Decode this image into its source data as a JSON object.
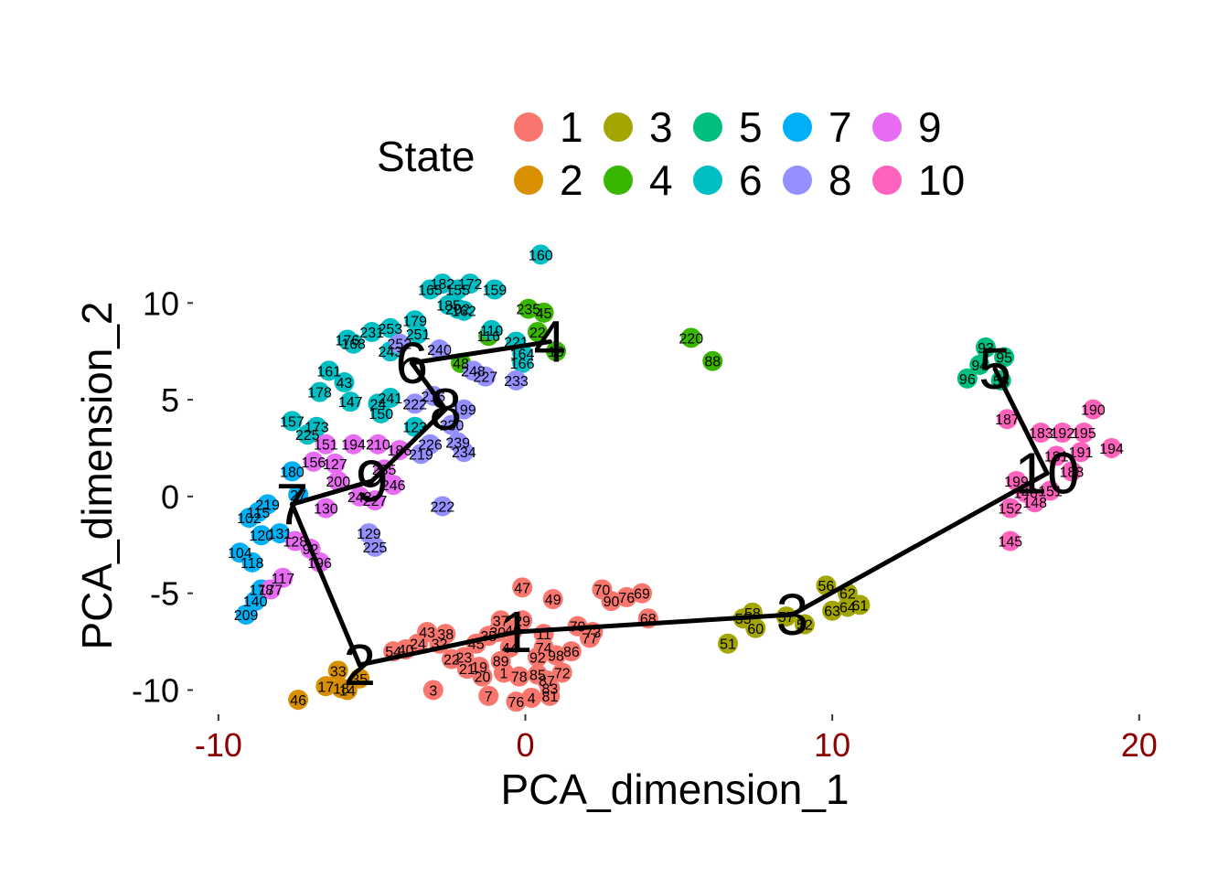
{
  "chart_data": {
    "type": "scatter",
    "title": "",
    "xlabel": "PCA_dimension_1",
    "ylabel": "PCA_dimension_2",
    "xlim": [
      -10.8,
      20.9
    ],
    "ylim": [
      -11.3,
      12.8
    ],
    "x_ticks": [
      -10,
      0,
      10,
      20
    ],
    "y_ticks": [
      -10,
      -5,
      0,
      5,
      10
    ],
    "x_tick_labels": [
      "-10",
      "0",
      "10",
      "20"
    ],
    "y_tick_labels": [
      "-10",
      "-5",
      "0",
      "5",
      "10"
    ],
    "grid": false,
    "legend": {
      "title": "State",
      "position": "top",
      "entries": [
        {
          "label": "1",
          "color": "#F8766D"
        },
        {
          "label": "2",
          "color": "#D89000"
        },
        {
          "label": "3",
          "color": "#A3A500"
        },
        {
          "label": "4",
          "color": "#39B600"
        },
        {
          "label": "5",
          "color": "#00BF7D"
        },
        {
          "label": "6",
          "color": "#00BFC4"
        },
        {
          "label": "7",
          "color": "#00B0F6"
        },
        {
          "label": "8",
          "color": "#9590FF"
        },
        {
          "label": "9",
          "color": "#E76BF3"
        },
        {
          "label": "10",
          "color": "#FF62BC"
        }
      ]
    },
    "state_colors": {
      "1": "#F8766D",
      "2": "#D89000",
      "3": "#A3A500",
      "4": "#39B600",
      "5": "#00BF7D",
      "6": "#00BFC4",
      "7": "#00B0F6",
      "8": "#9590FF",
      "9": "#E76BF3",
      "10": "#FF62BC"
    },
    "trajectory": {
      "edges": [
        [
          "7",
          "2"
        ],
        [
          "2",
          "1"
        ],
        [
          "1",
          "3"
        ],
        [
          "3",
          "10"
        ],
        [
          "10",
          "5"
        ],
        [
          "7",
          "9"
        ],
        [
          "9",
          "8"
        ],
        [
          "8",
          "6"
        ],
        [
          "6",
          "4"
        ]
      ],
      "centers": [
        {
          "state": "1",
          "label": "1",
          "x": -0.3,
          "y": -7.0
        },
        {
          "state": "2",
          "label": "2",
          "x": -5.4,
          "y": -8.7
        },
        {
          "state": "3",
          "label": "3",
          "x": 8.7,
          "y": -6.1
        },
        {
          "state": "4",
          "label": "4",
          "x": 0.8,
          "y": 8.0
        },
        {
          "state": "5",
          "label": "5",
          "x": 15.3,
          "y": 6.6
        },
        {
          "state": "6",
          "label": "6",
          "x": -3.7,
          "y": 6.9
        },
        {
          "state": "7",
          "label": "7",
          "x": -7.6,
          "y": -0.4
        },
        {
          "state": "8",
          "label": "8",
          "x": -2.6,
          "y": 4.5
        },
        {
          "state": "9",
          "label": "9",
          "x": -5.0,
          "y": 0.8
        },
        {
          "state": "10",
          "label": "10",
          "x": 17.0,
          "y": 1.2
        }
      ]
    },
    "points": [
      {
        "x": -0.1,
        "y": -4.7,
        "state": "1",
        "label": "47"
      },
      {
        "x": 0.9,
        "y": -5.3,
        "state": "1",
        "label": "49"
      },
      {
        "x": 2.5,
        "y": -4.8,
        "state": "1",
        "label": "70"
      },
      {
        "x": 2.8,
        "y": -5.4,
        "state": "1",
        "label": "90"
      },
      {
        "x": 3.3,
        "y": -5.2,
        "state": "1",
        "label": "76"
      },
      {
        "x": 3.8,
        "y": -5.0,
        "state": "1",
        "label": "69"
      },
      {
        "x": 4.0,
        "y": -6.3,
        "state": "1",
        "label": "68"
      },
      {
        "x": 1.7,
        "y": -6.7,
        "state": "1",
        "label": "79"
      },
      {
        "x": 2.1,
        "y": -7.3,
        "state": "1",
        "label": "77"
      },
      {
        "x": 2.2,
        "y": -7.0,
        "state": "1",
        "label": "73"
      },
      {
        "x": -3.2,
        "y": -7.0,
        "state": "1",
        "label": "43"
      },
      {
        "x": -3.5,
        "y": -7.6,
        "state": "1",
        "label": "24"
      },
      {
        "x": -2.6,
        "y": -7.1,
        "state": "1",
        "label": "38"
      },
      {
        "x": -2.8,
        "y": -7.6,
        "state": "1",
        "label": "32"
      },
      {
        "x": -0.8,
        "y": -6.4,
        "state": "1",
        "label": "37"
      },
      {
        "x": -0.1,
        "y": -6.4,
        "state": "1",
        "label": "29"
      },
      {
        "x": -0.9,
        "y": -7.0,
        "state": "1",
        "label": "30"
      },
      {
        "x": -1.2,
        "y": -7.2,
        "state": "1",
        "label": "35"
      },
      {
        "x": -0.4,
        "y": -6.9,
        "state": "1",
        "label": "40"
      },
      {
        "x": 0.6,
        "y": -7.1,
        "state": "1",
        "label": "11"
      },
      {
        "x": -1.6,
        "y": -7.6,
        "state": "1",
        "label": "45"
      },
      {
        "x": -0.5,
        "y": -7.8,
        "state": "1",
        "label": "44"
      },
      {
        "x": 0.6,
        "y": -7.8,
        "state": "1",
        "label": "74"
      },
      {
        "x": 1.5,
        "y": -8.0,
        "state": "1",
        "label": "86"
      },
      {
        "x": -2.4,
        "y": -8.4,
        "state": "1",
        "label": "22"
      },
      {
        "x": -2.0,
        "y": -8.3,
        "state": "1",
        "label": "23"
      },
      {
        "x": -0.8,
        "y": -8.5,
        "state": "1",
        "label": "89"
      },
      {
        "x": 0.4,
        "y": -8.3,
        "state": "1",
        "label": "92"
      },
      {
        "x": 1.0,
        "y": -8.2,
        "state": "1",
        "label": "98"
      },
      {
        "x": -1.9,
        "y": -8.9,
        "state": "1",
        "label": "21"
      },
      {
        "x": -1.5,
        "y": -8.8,
        "state": "1",
        "label": "19"
      },
      {
        "x": -0.7,
        "y": -9.1,
        "state": "1",
        "label": "1"
      },
      {
        "x": -1.4,
        "y": -9.3,
        "state": "1",
        "label": "20"
      },
      {
        "x": -0.2,
        "y": -9.3,
        "state": "1",
        "label": "78"
      },
      {
        "x": 0.4,
        "y": -9.2,
        "state": "1",
        "label": "85"
      },
      {
        "x": 1.2,
        "y": -9.1,
        "state": "1",
        "label": "72"
      },
      {
        "x": 0.7,
        "y": -9.5,
        "state": "1",
        "label": "87"
      },
      {
        "x": 0.8,
        "y": -9.9,
        "state": "1",
        "label": "83"
      },
      {
        "x": -1.2,
        "y": -10.3,
        "state": "1",
        "label": "7"
      },
      {
        "x": -0.3,
        "y": -10.6,
        "state": "1",
        "label": "76"
      },
      {
        "x": 0.2,
        "y": -10.4,
        "state": "1",
        "label": "4"
      },
      {
        "x": 0.8,
        "y": -10.3,
        "state": "1",
        "label": "81"
      },
      {
        "x": -3.0,
        "y": -10.0,
        "state": "1",
        "label": "3"
      },
      {
        "x": -4.3,
        "y": -8.0,
        "state": "1",
        "label": "54"
      },
      {
        "x": -3.9,
        "y": -7.9,
        "state": "1",
        "label": "40"
      },
      {
        "x": -6.1,
        "y": -9.0,
        "state": "2",
        "label": "33"
      },
      {
        "x": -5.4,
        "y": -9.4,
        "state": "2",
        "label": "35"
      },
      {
        "x": -6.5,
        "y": -9.8,
        "state": "2",
        "label": "17"
      },
      {
        "x": -6.0,
        "y": -9.9,
        "state": "2",
        "label": "18"
      },
      {
        "x": -5.8,
        "y": -10.0,
        "state": "2",
        "label": "14"
      },
      {
        "x": -7.4,
        "y": -10.5,
        "state": "2",
        "label": "46"
      },
      {
        "x": 8.5,
        "y": -6.2,
        "state": "3",
        "label": "57"
      },
      {
        "x": 7.4,
        "y": -6.0,
        "state": "3",
        "label": "58"
      },
      {
        "x": 7.1,
        "y": -6.3,
        "state": "3",
        "label": "55"
      },
      {
        "x": 7.5,
        "y": -6.8,
        "state": "3",
        "label": "60"
      },
      {
        "x": 9.8,
        "y": -4.6,
        "state": "3",
        "label": "56"
      },
      {
        "x": 10.5,
        "y": -5.0,
        "state": "3",
        "label": "62"
      },
      {
        "x": 10.0,
        "y": -5.9,
        "state": "3",
        "label": "63"
      },
      {
        "x": 10.5,
        "y": -5.7,
        "state": "3",
        "label": "64"
      },
      {
        "x": 10.9,
        "y": -5.6,
        "state": "3",
        "label": "61"
      },
      {
        "x": 9.1,
        "y": -6.6,
        "state": "3",
        "label": "52"
      },
      {
        "x": 6.6,
        "y": -7.6,
        "state": "3",
        "label": "51"
      },
      {
        "x": 5.4,
        "y": 8.2,
        "state": "4",
        "label": "220"
      },
      {
        "x": 6.1,
        "y": 7.0,
        "state": "4",
        "label": "88"
      },
      {
        "x": -1.2,
        "y": 8.3,
        "state": "4",
        "label": "116"
      },
      {
        "x": 0.1,
        "y": 9.7,
        "state": "4",
        "label": "235"
      },
      {
        "x": 0.6,
        "y": 9.5,
        "state": "4",
        "label": "45"
      },
      {
        "x": 0.4,
        "y": 8.5,
        "state": "4",
        "label": "22"
      },
      {
        "x": 1.0,
        "y": 7.5,
        "state": "4",
        "label": "10"
      },
      {
        "x": -2.1,
        "y": 6.9,
        "state": "4",
        "label": "48"
      },
      {
        "x": 15.0,
        "y": 7.7,
        "state": "5",
        "label": "93"
      },
      {
        "x": 15.6,
        "y": 7.2,
        "state": "5",
        "label": "95"
      },
      {
        "x": 14.8,
        "y": 6.8,
        "state": "5",
        "label": "94"
      },
      {
        "x": 14.4,
        "y": 6.1,
        "state": "5",
        "label": "96"
      },
      {
        "x": 15.5,
        "y": 6.0,
        "state": "5",
        "label": "53"
      },
      {
        "x": 0.5,
        "y": 12.5,
        "state": "6",
        "label": "160"
      },
      {
        "x": -3.1,
        "y": 10.7,
        "state": "6",
        "label": "165"
      },
      {
        "x": -2.7,
        "y": 11.0,
        "state": "6",
        "label": "182"
      },
      {
        "x": -2.2,
        "y": 10.7,
        "state": "6",
        "label": "155"
      },
      {
        "x": -1.8,
        "y": 11.0,
        "state": "6",
        "label": "172"
      },
      {
        "x": -1.0,
        "y": 10.7,
        "state": "6",
        "label": "159"
      },
      {
        "x": -2.5,
        "y": 9.9,
        "state": "6",
        "label": "185"
      },
      {
        "x": -2.0,
        "y": 9.6,
        "state": "6",
        "label": "162"
      },
      {
        "x": -1.1,
        "y": 8.6,
        "state": "6",
        "label": "110"
      },
      {
        "x": -0.3,
        "y": 8.0,
        "state": "6",
        "label": "221"
      },
      {
        "x": -0.1,
        "y": 7.4,
        "state": "6",
        "label": "164"
      },
      {
        "x": -0.1,
        "y": 6.9,
        "state": "6",
        "label": "166"
      },
      {
        "x": -3.6,
        "y": 9.1,
        "state": "6",
        "label": "179"
      },
      {
        "x": -4.4,
        "y": 8.7,
        "state": "6",
        "label": "253"
      },
      {
        "x": -5.0,
        "y": 8.5,
        "state": "6",
        "label": "231"
      },
      {
        "x": -5.8,
        "y": 8.1,
        "state": "6",
        "label": "176"
      },
      {
        "x": -5.6,
        "y": 7.9,
        "state": "6",
        "label": "168"
      },
      {
        "x": -3.5,
        "y": 8.4,
        "state": "6",
        "label": "251"
      },
      {
        "x": -4.4,
        "y": 7.5,
        "state": "6",
        "label": "243"
      },
      {
        "x": -6.4,
        "y": 6.5,
        "state": "6",
        "label": "161"
      },
      {
        "x": -6.7,
        "y": 5.4,
        "state": "6",
        "label": "178"
      },
      {
        "x": -5.9,
        "y": 5.9,
        "state": "6",
        "label": "43"
      },
      {
        "x": -5.7,
        "y": 4.9,
        "state": "6",
        "label": "147"
      },
      {
        "x": -4.4,
        "y": 5.1,
        "state": "6",
        "label": "241"
      },
      {
        "x": -4.8,
        "y": 4.8,
        "state": "6",
        "label": "24"
      },
      {
        "x": -7.6,
        "y": 3.9,
        "state": "6",
        "label": "157"
      },
      {
        "x": -6.8,
        "y": 3.6,
        "state": "6",
        "label": "173"
      },
      {
        "x": -7.1,
        "y": 3.2,
        "state": "6",
        "label": "225"
      },
      {
        "x": -3.6,
        "y": 3.6,
        "state": "6",
        "label": "123"
      },
      {
        "x": -4.7,
        "y": 4.3,
        "state": "6",
        "label": "150"
      },
      {
        "x": -2.2,
        "y": 9.7,
        "state": "6",
        "label": "202"
      },
      {
        "x": -9.0,
        "y": -1.1,
        "state": "7",
        "label": "102"
      },
      {
        "x": -8.4,
        "y": -0.4,
        "state": "7",
        "label": "219"
      },
      {
        "x": -8.7,
        "y": -0.8,
        "state": "7",
        "label": "115"
      },
      {
        "x": -7.6,
        "y": 1.3,
        "state": "7",
        "label": "180"
      },
      {
        "x": -7.4,
        "y": 0.1,
        "state": "7",
        "label": "27"
      },
      {
        "x": -8.6,
        "y": -2.0,
        "state": "7",
        "label": "120"
      },
      {
        "x": -8.0,
        "y": -1.9,
        "state": "7",
        "label": "131"
      },
      {
        "x": -9.3,
        "y": -2.9,
        "state": "7",
        "label": "104"
      },
      {
        "x": -8.9,
        "y": -3.4,
        "state": "7",
        "label": "118"
      },
      {
        "x": -8.6,
        "y": -4.8,
        "state": "7",
        "label": "178"
      },
      {
        "x": -8.8,
        "y": -5.4,
        "state": "7",
        "label": "140"
      },
      {
        "x": -9.1,
        "y": -6.1,
        "state": "7",
        "label": "209"
      },
      {
        "x": -2.8,
        "y": 7.6,
        "state": "8",
        "label": "240"
      },
      {
        "x": -4.1,
        "y": 7.9,
        "state": "8",
        "label": "252"
      },
      {
        "x": -1.7,
        "y": 6.5,
        "state": "8",
        "label": "248"
      },
      {
        "x": -1.3,
        "y": 6.2,
        "state": "8",
        "label": "227"
      },
      {
        "x": -0.3,
        "y": 6.0,
        "state": "8",
        "label": "233"
      },
      {
        "x": -3.0,
        "y": 5.2,
        "state": "8",
        "label": "216"
      },
      {
        "x": -2.0,
        "y": 4.5,
        "state": "8",
        "label": "199"
      },
      {
        "x": -3.6,
        "y": 4.8,
        "state": "8",
        "label": "222"
      },
      {
        "x": -2.4,
        "y": 3.7,
        "state": "8",
        "label": "230"
      },
      {
        "x": -2.2,
        "y": 2.8,
        "state": "8",
        "label": "239"
      },
      {
        "x": -3.1,
        "y": 2.7,
        "state": "8",
        "label": "226"
      },
      {
        "x": -3.4,
        "y": 2.2,
        "state": "8",
        "label": "219"
      },
      {
        "x": -2.0,
        "y": 2.3,
        "state": "8",
        "label": "234"
      },
      {
        "x": -2.7,
        "y": -0.5,
        "state": "8",
        "label": "222"
      },
      {
        "x": -5.1,
        "y": -1.9,
        "state": "8",
        "label": "129"
      },
      {
        "x": -4.9,
        "y": -2.6,
        "state": "8",
        "label": "225"
      },
      {
        "x": -6.5,
        "y": 2.7,
        "state": "9",
        "label": "151"
      },
      {
        "x": -5.6,
        "y": 2.7,
        "state": "9",
        "label": "194"
      },
      {
        "x": -4.8,
        "y": 2.7,
        "state": "9",
        "label": "210"
      },
      {
        "x": -6.9,
        "y": 1.8,
        "state": "9",
        "label": "156"
      },
      {
        "x": -6.2,
        "y": 1.7,
        "state": "9",
        "label": "127"
      },
      {
        "x": -4.1,
        "y": 2.4,
        "state": "9",
        "label": "186"
      },
      {
        "x": -4.6,
        "y": 1.4,
        "state": "9",
        "label": "235"
      },
      {
        "x": -6.1,
        "y": 0.8,
        "state": "9",
        "label": "200"
      },
      {
        "x": -4.3,
        "y": 0.6,
        "state": "9",
        "label": "246"
      },
      {
        "x": -5.4,
        "y": 0.0,
        "state": "9",
        "label": "243"
      },
      {
        "x": -4.9,
        "y": -0.2,
        "state": "9",
        "label": "227"
      },
      {
        "x": -6.5,
        "y": -0.6,
        "state": "9",
        "label": "130"
      },
      {
        "x": -7.5,
        "y": -2.3,
        "state": "9",
        "label": "128"
      },
      {
        "x": -7.0,
        "y": -2.7,
        "state": "9",
        "label": "92"
      },
      {
        "x": -6.7,
        "y": -3.4,
        "state": "9",
        "label": "196"
      },
      {
        "x": -7.9,
        "y": -4.2,
        "state": "9",
        "label": "117"
      },
      {
        "x": -8.3,
        "y": -4.8,
        "state": "9",
        "label": "177"
      },
      {
        "x": 18.5,
        "y": 4.5,
        "state": "10",
        "label": "190"
      },
      {
        "x": 15.7,
        "y": 4.0,
        "state": "10",
        "label": "187"
      },
      {
        "x": 16.8,
        "y": 3.3,
        "state": "10",
        "label": "183"
      },
      {
        "x": 17.5,
        "y": 3.3,
        "state": "10",
        "label": "192"
      },
      {
        "x": 18.2,
        "y": 3.3,
        "state": "10",
        "label": "195"
      },
      {
        "x": 19.1,
        "y": 2.5,
        "state": "10",
        "label": "194"
      },
      {
        "x": 18.1,
        "y": 2.3,
        "state": "10",
        "label": "191"
      },
      {
        "x": 17.3,
        "y": 2.1,
        "state": "10",
        "label": "181"
      },
      {
        "x": 17.8,
        "y": 1.3,
        "state": "10",
        "label": "188"
      },
      {
        "x": 16.0,
        "y": 0.8,
        "state": "10",
        "label": "199"
      },
      {
        "x": 16.3,
        "y": 0.2,
        "state": "10",
        "label": "146"
      },
      {
        "x": 17.1,
        "y": 0.3,
        "state": "10",
        "label": "151"
      },
      {
        "x": 16.6,
        "y": -0.3,
        "state": "10",
        "label": "148"
      },
      {
        "x": 15.8,
        "y": -0.6,
        "state": "10",
        "label": "152"
      },
      {
        "x": 15.8,
        "y": -2.3,
        "state": "10",
        "label": "145"
      }
    ]
  }
}
